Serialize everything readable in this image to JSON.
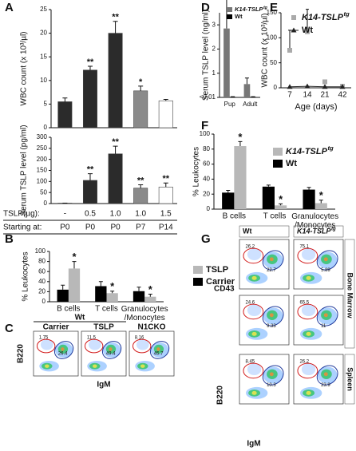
{
  "chart_data": [
    {
      "type": "bar",
      "panel": "A",
      "ylabel": "WBC count (x 10³/µl)",
      "values": [
        5.5,
        12.2,
        20,
        7.8,
        5.7
      ],
      "errors": [
        0.8,
        0.8,
        2.5,
        1,
        0.3
      ],
      "colors": [
        "#2b2b2b",
        "#2b2b2b",
        "#2b2b2b",
        "#8a8a8a",
        "#ffffff"
      ],
      "annotations": [
        null,
        "**",
        "**",
        "*",
        null
      ],
      "ylim": [
        0,
        25
      ],
      "yticks": [
        0,
        5,
        10,
        15,
        20,
        25
      ]
    },
    {
      "type": "bar",
      "ylabel": "Serum TSLP level (pg/ml)",
      "values": [
        2,
        105,
        225,
        70,
        75
      ],
      "errors": [
        0,
        30,
        35,
        15,
        18
      ],
      "colors": [
        "#2b2b2b",
        "#2b2b2b",
        "#2b2b2b",
        "#8a8a8a",
        "#ffffff"
      ],
      "annotations": [
        null,
        "**",
        "**",
        "**",
        "**"
      ],
      "ylim": [
        0,
        300
      ],
      "yticks": [
        0,
        50,
        100,
        150,
        200,
        250,
        300
      ],
      "category_rows": [
        {
          "label": "TSLP(µg):",
          "values": [
            "-",
            "0.5",
            "1.0",
            "1.0",
            "1.5"
          ]
        },
        {
          "label": "Starting at:",
          "values": [
            "P0",
            "P0",
            "P0",
            "P7",
            "P14"
          ]
        }
      ]
    },
    {
      "type": "grouped_bar",
      "panel": "B",
      "ylabel": "% Leukocytes",
      "categories": [
        "B cells",
        "T cells",
        "Granulocytes\n/Monocytes"
      ],
      "series": [
        {
          "name": "TSLP",
          "color": "#b8b8b8",
          "values": [
            66,
            17,
            10
          ],
          "errors": [
            14,
            4,
            5
          ],
          "annotations": [
            "*",
            "*",
            "*"
          ]
        },
        {
          "name": "Carrier",
          "color": "#000000",
          "values": [
            24,
            31,
            21
          ],
          "errors": [
            9,
            9,
            8
          ]
        }
      ],
      "ylim": [
        0,
        100
      ],
      "yticks": [
        0,
        20,
        40,
        60,
        80,
        100
      ]
    },
    {
      "type": "grouped_bar",
      "panel": "D",
      "ylabel": "Serum TSLP level (ng/ml)",
      "categories": [
        "Pup",
        "Adult"
      ],
      "series": [
        {
          "name": "K14-TSLP",
          "sup": "tg",
          "color": "#777777",
          "values": [
            2.85,
            0.55
          ],
          "errors": [
            1.3,
            0.25
          ]
        },
        {
          "name": "Wt",
          "color": "#000000",
          "values": [
            0.02,
            0.02
          ],
          "errors": [
            0.01,
            0.01
          ]
        }
      ],
      "ylim": [
        0,
        3.5
      ],
      "yticks": [
        {
          "value": 0,
          "label": "<0.01"
        },
        1,
        2,
        3
      ]
    },
    {
      "type": "line",
      "panel": "E",
      "ylabel": "WBC count (x 10³/µl)",
      "xlabel": "Age (days)",
      "categories": [
        "7",
        "14",
        "21",
        "42"
      ],
      "series": [
        {
          "name": "K14-TSLP",
          "sup": "tg",
          "color": "#aaaaaa",
          "marker": "square",
          "line": false,
          "values": [
            75,
            112,
            12,
            3
          ],
          "errors": [
            40,
            45,
            3,
            2
          ]
        },
        {
          "name": "Wt",
          "color": "#222222",
          "marker": "triangle",
          "line": true,
          "values": [
            2,
            3,
            2,
            2
          ]
        }
      ],
      "ylim": [
        0,
        150
      ],
      "yticks": [
        0,
        50,
        100,
        150
      ]
    },
    {
      "type": "grouped_bar",
      "panel": "F",
      "ylabel": "% Leukocytes",
      "categories": [
        "B cells",
        "T cells",
        "Granulocytes\n/Monocytes"
      ],
      "series": [
        {
          "name": "K14-TSLP",
          "sup": "tg",
          "color": "#b8b8b8",
          "values": [
            84,
            5,
            8
          ],
          "errors": [
            6,
            2,
            4
          ],
          "annotations": [
            "*",
            "*",
            "*"
          ]
        },
        {
          "name": "Wt",
          "color": "#000000",
          "values": [
            22,
            30,
            26
          ],
          "errors": [
            3,
            2,
            3
          ]
        }
      ],
      "ylim": [
        0,
        100
      ],
      "yticks": [
        0,
        20,
        40,
        60,
        80,
        100
      ]
    }
  ],
  "flow_plots": {
    "C": {
      "panel": "C",
      "group": "Wt",
      "columns": [
        "Carrier",
        "TSLP",
        "N1CKO"
      ],
      "gates": [
        [
          1.75,
          26.4
        ],
        [
          11.5,
          49.4
        ],
        [
          8.16,
          45.7
        ]
      ],
      "ylabel": "B220",
      "xlabel": "IgM"
    },
    "G": {
      "panel": "G",
      "columns": [
        "Wt",
        "K14-TSLP"
      ],
      "column_sup": "tg",
      "row_labels": [
        "Bone Marrow",
        "Spleen"
      ],
      "gates": [
        [
          [
            26.2,
            22.7
          ],
          [
            75.1,
            5.89
          ]
        ],
        [
          [
            24.6,
            9.33
          ],
          [
            65.5,
            11
          ]
        ],
        [
          [
            8.45,
            10.3
          ],
          [
            26.2,
            23.9
          ]
        ]
      ],
      "gate_ylabel": "CD43",
      "ylabel": "B220",
      "xlabel": "IgM"
    }
  }
}
